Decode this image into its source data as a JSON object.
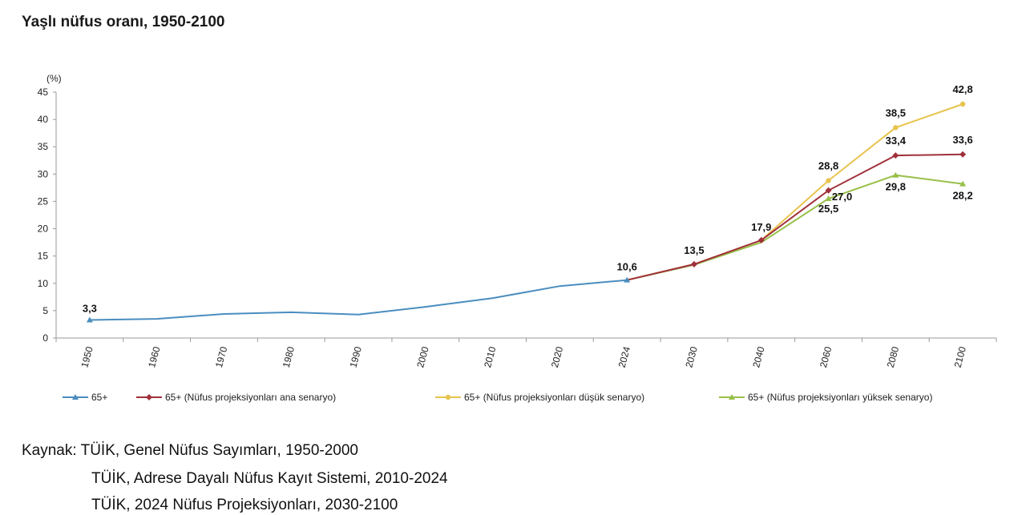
{
  "title": "Yaşlı nüfus oranı, 1950-2100",
  "source": {
    "line1": "Kaynak: TÜİK, Genel Nüfus Sayımları, 1950-2000",
    "line2": "TÜİK, Adrese Dayalı Nüfus Kayıt Sistemi, 2010-2024",
    "line3": "TÜİK, 2024 Nüfus Projeksiyonları, 2030-2100"
  },
  "chart_data": {
    "type": "line",
    "title": "Yaşlı nüfus oranı, 1950-2100",
    "ylabel": "(%)",
    "xlabel": "",
    "ylim": [
      0,
      45
    ],
    "yticks": [
      0,
      5,
      10,
      15,
      20,
      25,
      30,
      35,
      40,
      45
    ],
    "categories": [
      "1950",
      "1960",
      "1970",
      "1980",
      "1990",
      "2000",
      "2010",
      "2020",
      "2024",
      "2030",
      "2040",
      "2060",
      "2080",
      "2100"
    ],
    "legend_position": "bottom",
    "grid": false,
    "series": [
      {
        "name": "65+",
        "color": "#4a8dbf",
        "marker": "triangle",
        "values": [
          3.3,
          3.5,
          4.4,
          4.7,
          4.3,
          5.7,
          7.3,
          9.5,
          10.6,
          null,
          null,
          null,
          null,
          null
        ],
        "labels": [
          [
            "1950",
            "3,3"
          ],
          [
            "2024",
            "10,6"
          ]
        ]
      },
      {
        "name": "65+ (Nüfus projeksiyonları ana senaryo)",
        "color": "#a0303a",
        "marker": "diamond",
        "values": [
          null,
          null,
          null,
          null,
          null,
          null,
          null,
          null,
          10.6,
          13.5,
          17.9,
          27.0,
          33.4,
          33.6
        ],
        "labels": [
          [
            "2030",
            "13,5"
          ],
          [
            "2040",
            "17,9"
          ],
          [
            "2060",
            "27,0"
          ],
          [
            "2080",
            "33,4"
          ],
          [
            "2100",
            "33,6"
          ]
        ]
      },
      {
        "name": "65+ (Nüfus projeksiyonları düşük senaryo)",
        "color": "#e8c44f",
        "marker": "circle",
        "values": [
          null,
          null,
          null,
          null,
          null,
          null,
          null,
          null,
          10.6,
          13.5,
          17.9,
          28.8,
          38.5,
          42.8
        ],
        "labels": [
          [
            "2060",
            "28,8"
          ],
          [
            "2080",
            "38,5"
          ],
          [
            "2100",
            "42,8"
          ]
        ]
      },
      {
        "name": "65+ (Nüfus projeksiyonları yüksek senaryo)",
        "color": "#98c04a",
        "marker": "triangle",
        "values": [
          null,
          null,
          null,
          null,
          null,
          null,
          null,
          null,
          10.6,
          13.4,
          17.5,
          25.5,
          29.8,
          28.2
        ],
        "labels": [
          [
            "2060",
            "25,5"
          ],
          [
            "2080",
            "29,8"
          ],
          [
            "2100",
            "28,2"
          ]
        ]
      }
    ]
  }
}
